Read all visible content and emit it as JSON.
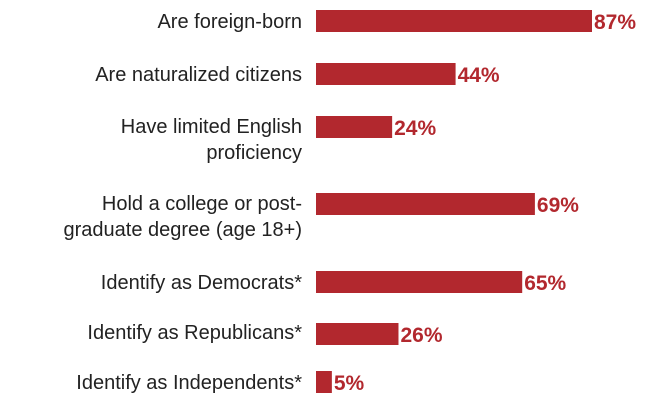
{
  "chart_data": {
    "type": "bar",
    "orientation": "horizontal",
    "categories": [
      "Are foreign-born",
      "Are naturalized citizens",
      "Have limited English\nproficiency",
      "Hold a college or post-\ngraduate degree (age 18+)",
      "Identify as Democrats*",
      "Identify as Republicans*",
      "Identify as Independents*"
    ],
    "values": [
      87,
      44,
      24,
      69,
      65,
      26,
      5
    ],
    "value_labels": [
      "87%",
      "44%",
      "24%",
      "69%",
      "65%",
      "26%",
      "5%"
    ],
    "unit": "%",
    "xlim": [
      0,
      87
    ],
    "grid": false,
    "legend": "none",
    "colors": {
      "bar": "#b2282e",
      "value_label": "#b2282e",
      "category_label": "#222222"
    }
  }
}
